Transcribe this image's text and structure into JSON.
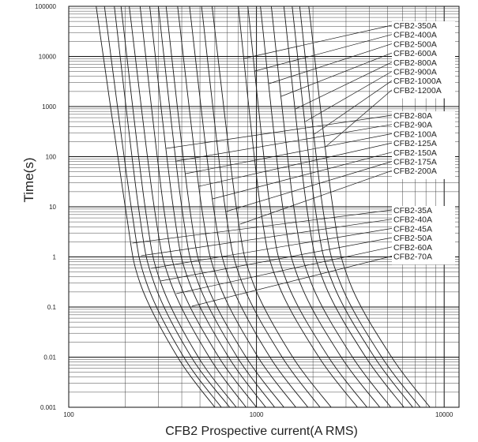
{
  "chart_data": {
    "type": "line",
    "title": "",
    "xlabel": "CFB2 Prospective current(A RMS)",
    "ylabel": "Time(s)",
    "x_scale": "log",
    "y_scale": "log",
    "xlim": [
      100,
      12000
    ],
    "ylim": [
      0.001,
      100000
    ],
    "grid": true,
    "x_ticks": [
      "100",
      "1000",
      "10000"
    ],
    "y_ticks": [
      "0.001",
      "0.01",
      "0.1",
      "1",
      "10",
      "100",
      "1000",
      "10000",
      "100000"
    ],
    "legend_groups": [
      {
        "labels": [
          "CFB2-350A",
          "CFB2-400A",
          "CFB2-500A",
          "CFB2-600A",
          "CFB2-800A",
          "CFB2-900A",
          "CFB2-1000A",
          "CFB2-1200A"
        ]
      },
      {
        "labels": [
          "CFB2-80A",
          "CFB2-90A",
          "CFB2-100A",
          "CFB2-125A",
          "CFB2-150A",
          "CFB2-175A",
          "CFB2-200A"
        ]
      },
      {
        "labels": [
          "CFB2-35A",
          "CFB2-40A",
          "CFB2-45A",
          "CFB2-50A",
          "CFB2-60A",
          "CFB2-70A"
        ]
      }
    ],
    "series": [
      {
        "name": "CFB2-35A",
        "points": [
          [
            140,
            100000
          ],
          [
            200,
            10
          ],
          [
            240,
            0.3
          ],
          [
            380,
            0.01
          ],
          [
            600,
            0.001
          ]
        ]
      },
      {
        "name": "CFB2-40A",
        "points": [
          [
            155,
            100000
          ],
          [
            215,
            10
          ],
          [
            260,
            0.3
          ],
          [
            410,
            0.01
          ],
          [
            650,
            0.001
          ]
        ]
      },
      {
        "name": "CFB2-45A",
        "points": [
          [
            175,
            100000
          ],
          [
            235,
            10
          ],
          [
            285,
            0.3
          ],
          [
            450,
            0.01
          ],
          [
            720,
            0.001
          ]
        ]
      },
      {
        "name": "CFB2-50A",
        "points": [
          [
            190,
            100000
          ],
          [
            255,
            10
          ],
          [
            310,
            0.3
          ],
          [
            490,
            0.01
          ],
          [
            780,
            0.001
          ]
        ]
      },
      {
        "name": "CFB2-60A",
        "points": [
          [
            210,
            100000
          ],
          [
            285,
            10
          ],
          [
            350,
            0.3
          ],
          [
            560,
            0.01
          ],
          [
            880,
            0.001
          ]
        ]
      },
      {
        "name": "CFB2-70A",
        "points": [
          [
            240,
            100000
          ],
          [
            320,
            10
          ],
          [
            390,
            0.3
          ],
          [
            630,
            0.01
          ],
          [
            1000,
            0.001
          ]
        ]
      },
      {
        "name": "CFB2-80A",
        "points": [
          [
            270,
            100000
          ],
          [
            360,
            10
          ],
          [
            440,
            0.3
          ],
          [
            710,
            0.01
          ],
          [
            1120,
            0.001
          ]
        ]
      },
      {
        "name": "CFB2-90A",
        "points": [
          [
            300,
            100000
          ],
          [
            400,
            10
          ],
          [
            490,
            0.3
          ],
          [
            790,
            0.01
          ],
          [
            1250,
            0.001
          ]
        ]
      },
      {
        "name": "CFB2-100A",
        "points": [
          [
            330,
            100000
          ],
          [
            440,
            10
          ],
          [
            540,
            0.3
          ],
          [
            880,
            0.01
          ],
          [
            1400,
            0.001
          ]
        ]
      },
      {
        "name": "CFB2-125A",
        "points": [
          [
            380,
            100000
          ],
          [
            510,
            10
          ],
          [
            630,
            0.3
          ],
          [
            1020,
            0.01
          ],
          [
            1620,
            0.001
          ]
        ]
      },
      {
        "name": "CFB2-150A",
        "points": [
          [
            440,
            100000
          ],
          [
            590,
            10
          ],
          [
            730,
            0.3
          ],
          [
            1180,
            0.01
          ],
          [
            1880,
            0.001
          ]
        ]
      },
      {
        "name": "CFB2-175A",
        "points": [
          [
            510,
            100000
          ],
          [
            680,
            10
          ],
          [
            840,
            0.3
          ],
          [
            1370,
            0.01
          ],
          [
            2180,
            0.001
          ]
        ]
      },
      {
        "name": "CFB2-200A",
        "points": [
          [
            580,
            100000
          ],
          [
            780,
            10
          ],
          [
            960,
            0.3
          ],
          [
            1560,
            0.01
          ],
          [
            2500,
            0.001
          ]
        ]
      },
      {
        "name": "CFB2-350A",
        "points": [
          [
            800,
            100000
          ],
          [
            1050,
            10
          ],
          [
            1300,
            0.3
          ],
          [
            2150,
            0.01
          ],
          [
            3450,
            0.001
          ]
        ]
      },
      {
        "name": "CFB2-400A",
        "points": [
          [
            900,
            100000
          ],
          [
            1180,
            10
          ],
          [
            1460,
            0.3
          ],
          [
            2420,
            0.01
          ],
          [
            3880,
            0.001
          ]
        ]
      },
      {
        "name": "CFB2-500A",
        "points": [
          [
            1050,
            100000
          ],
          [
            1380,
            10
          ],
          [
            1710,
            0.3
          ],
          [
            2830,
            0.01
          ],
          [
            4540,
            0.001
          ]
        ]
      },
      {
        "name": "CFB2-600A",
        "points": [
          [
            1200,
            100000
          ],
          [
            1580,
            10
          ],
          [
            1960,
            0.3
          ],
          [
            3250,
            0.01
          ],
          [
            5200,
            0.001
          ]
        ]
      },
      {
        "name": "CFB2-800A",
        "points": [
          [
            1400,
            100000
          ],
          [
            1850,
            10
          ],
          [
            2300,
            0.3
          ],
          [
            3820,
            0.01
          ],
          [
            6100,
            0.001
          ]
        ]
      },
      {
        "name": "CFB2-900A",
        "points": [
          [
            1550,
            100000
          ],
          [
            2050,
            10
          ],
          [
            2550,
            0.3
          ],
          [
            4250,
            0.01
          ],
          [
            6800,
            0.001
          ]
        ]
      },
      {
        "name": "CFB2-1000A",
        "points": [
          [
            1700,
            100000
          ],
          [
            2250,
            10
          ],
          [
            2800,
            0.3
          ],
          [
            4650,
            0.01
          ],
          [
            7450,
            0.001
          ]
        ]
      },
      {
        "name": "CFB2-1200A",
        "points": [
          [
            1900,
            100000
          ],
          [
            2550,
            10
          ],
          [
            3150,
            0.3
          ],
          [
            5250,
            0.01
          ],
          [
            8400,
            0.001
          ]
        ]
      }
    ]
  }
}
